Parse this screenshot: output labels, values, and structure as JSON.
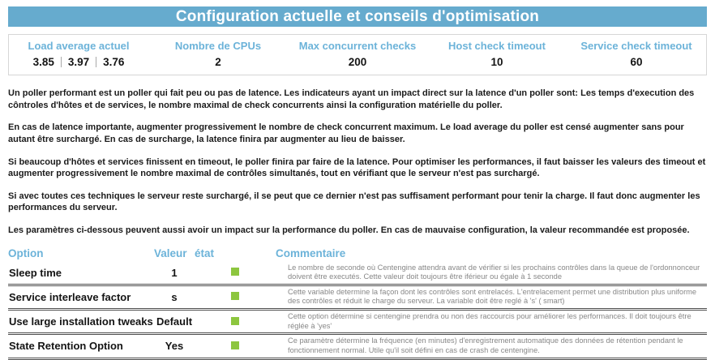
{
  "title": "Configuration actuelle et conseils d'optimisation",
  "summary": {
    "columns": [
      "Load average actuel",
      "Nombre de CPUs",
      "Max concurrent checks",
      "Host check timeout",
      "Service check timeout"
    ],
    "load_average": [
      "3.85",
      "3.97",
      "3.76"
    ],
    "cpus": "2",
    "max_concurrent_checks": "200",
    "host_check_timeout": "10",
    "service_check_timeout": "60"
  },
  "paragraphs": [
    "Un poller performant est un poller qui fait peu ou pas de latence. Les indicateurs ayant un impact direct sur la latence d'un poller sont: Les temps d'execution des côntroles d'hôtes et de services, le nombre maximal de check concurrents ainsi la configuration matérielle du poller.",
    "En cas de latence importante, augmenter progressivement le nombre de check concurrent maximum. Le load average du poller est censé augmenter sans pour autant être surchargé. En cas de surcharge, la latence finira par augmenter au lieu de baisser.",
    "Si beaucoup d'hôtes et services finissent en timeout, le poller finira par faire de la latence. Pour optimiser les performances, il faut baisser les valeurs des timeout et augmenter progressivement le nombre maximal de contrôles simultanés, tout en vérifiant que le serveur n'est pas surchargé.",
    "Si avec toutes ces techniques le serveur reste surchargé, il se peut que ce dernier n'est pas suffisament performant pour tenir la charge. Il faut donc augmenter les performances du serveur.",
    "Les paramètres ci-dessous peuvent aussi avoir un impact sur la performance du poller. En cas de mauvaise configuration, la valeur recommandée est proposée."
  ],
  "options_table": {
    "headers": [
      "Option",
      "Valeur",
      "état",
      "Commentaire"
    ],
    "rows": [
      {
        "option": "Sleep time",
        "valeur": "1",
        "etat": "ok",
        "commentaire": "Le nombre de seconde où Centengine attendra avant de vérifier si les prochains contrôles dans la queue de l'ordonnonceur doivent être executés. Cette valeur doit toujours être iférieur ou égale à 1 seconde"
      },
      {
        "option": "Service interleave factor",
        "valeur": "s",
        "etat": "ok",
        "commentaire": "Cette variable determine la façon dont les contrôles sont entrelacés. L'entrelacement permet une distribution plus uniforme des contrôles et réduit le charge du serveur. La variable doit être reglé à 's' ( smart)"
      },
      {
        "option": "Use large installation tweaks",
        "valeur": "Default",
        "etat": "ok",
        "commentaire": "Cette option détermine si centengine prendra ou non des raccourcis pour améliorer les performances. Il doit toujours être réglée à 'yes'"
      },
      {
        "option": "State Retention Option",
        "valeur": "Yes",
        "etat": "ok",
        "commentaire": "Ce paramètre détermine la fréquence (en minutes) d'enregistrement automatique des données de rétention pendant le fonctionnement normal. Utile qu'il soit défini en cas de crash de centengine."
      }
    ]
  },
  "colors": {
    "title_bar_bg": "#66abce",
    "accent_blue": "#6cb3d9",
    "status_ok_green": "#8dc63f"
  }
}
